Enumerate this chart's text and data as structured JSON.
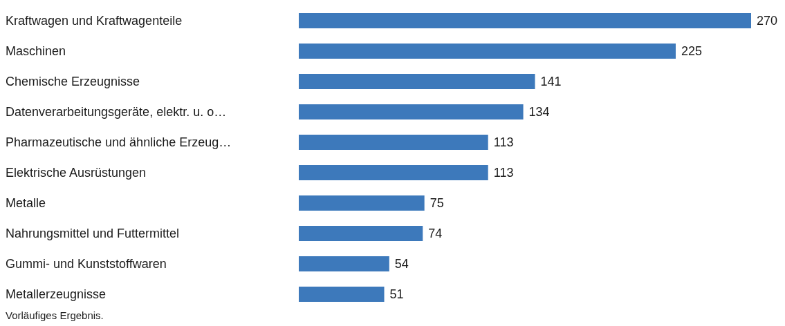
{
  "chart_data": {
    "type": "bar",
    "orientation": "horizontal",
    "categories": [
      "Kraftwagen und Kraftwagenteile",
      "Maschinen",
      "Chemische Erzeugnisse",
      "Datenverarbeitungsgeräte, elektr. u. o…",
      "Pharmazeutische und ähnliche Erzeug…",
      "Elektrische Ausrüstungen",
      "Metalle",
      "Nahrungsmittel und Futtermittel",
      "Gummi- und Kunststoffwaren",
      "Metallerzeugnisse"
    ],
    "values": [
      270,
      225,
      141,
      134,
      113,
      113,
      75,
      74,
      54,
      51
    ],
    "color": "#3d79bb",
    "data_labels": true,
    "annotations": [
      "Vorläufiges Ergebnis."
    ]
  }
}
